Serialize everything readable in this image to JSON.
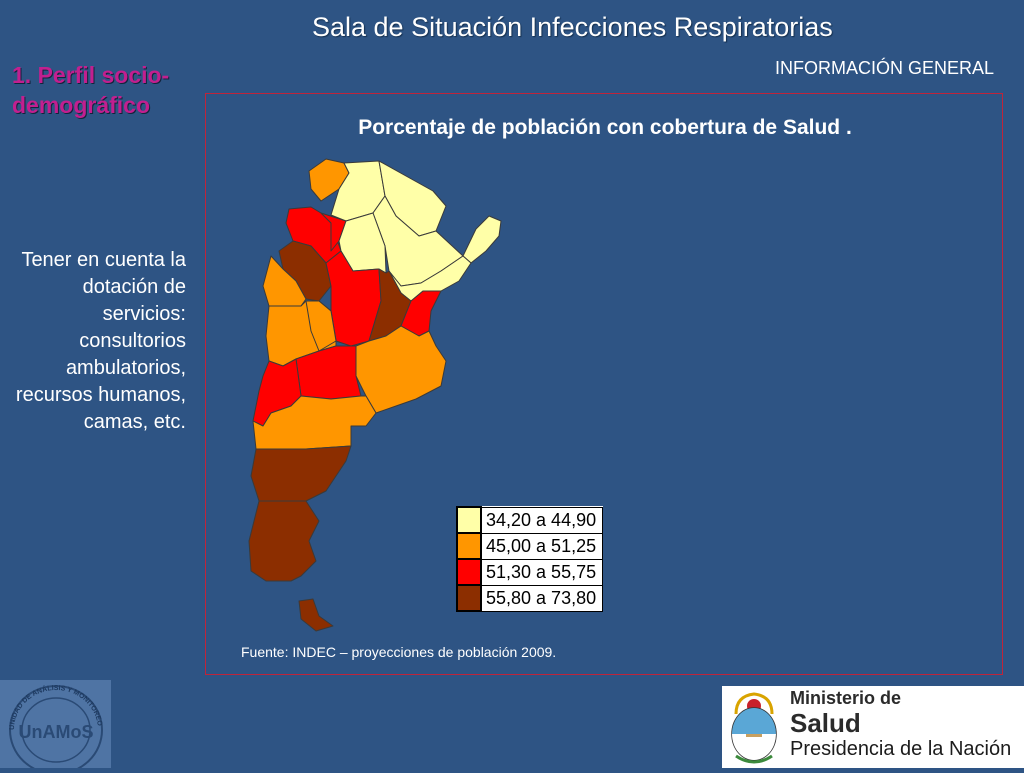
{
  "header": {
    "title": "Sala de Situación Infecciones Respiratorias",
    "section": "INFORMACIÓN GENERAL"
  },
  "sidebar": {
    "heading": "1. Perfil socio-demográfico",
    "note": "Tener en cuenta la dotación de servicios: consultorios ambulatorios, recursos humanos, camas, etc."
  },
  "map": {
    "title": "Porcentaje de población con cobertura de Salud .",
    "legend": [
      {
        "label": "34,20 a 44,90",
        "color": "#ffffa8"
      },
      {
        "label": "45,00 a 51,25",
        "color": "#ff9600"
      },
      {
        "label": "51,30 a 55,75",
        "color": "#ff0000"
      },
      {
        "label": "55,80 a 73,80",
        "color": "#8c2e00"
      }
    ],
    "regions": [
      {
        "id": "jujuy",
        "class": 1
      },
      {
        "id": "salta",
        "class": 0
      },
      {
        "id": "formosa",
        "class": 0
      },
      {
        "id": "misiones",
        "class": 0
      },
      {
        "id": "chaco",
        "class": 0
      },
      {
        "id": "catamarca",
        "class": 2
      },
      {
        "id": "tucuman",
        "class": 2
      },
      {
        "id": "santiago-del-estero",
        "class": 0
      },
      {
        "id": "corrientes",
        "class": 0
      },
      {
        "id": "la-rioja",
        "class": 3
      },
      {
        "id": "san-juan",
        "class": 1
      },
      {
        "id": "cordoba",
        "class": 2
      },
      {
        "id": "santa-fe",
        "class": 3
      },
      {
        "id": "entre-rios",
        "class": 2
      },
      {
        "id": "mendoza",
        "class": 1
      },
      {
        "id": "san-luis",
        "class": 1
      },
      {
        "id": "buenos-aires",
        "class": 1
      },
      {
        "id": "la-pampa",
        "class": 2
      },
      {
        "id": "neuquen",
        "class": 2
      },
      {
        "id": "rio-negro",
        "class": 1
      },
      {
        "id": "chubut",
        "class": 3
      },
      {
        "id": "santa-cruz",
        "class": 3
      },
      {
        "id": "tierra-del-fuego",
        "class": 3
      }
    ],
    "source": "Fuente: INDEC – proyecciones de población 2009."
  },
  "logos": {
    "unamos_text": "UnAMoS",
    "unamos_ring": "UNIDAD DE ANÁLISIS Y MONITOREO DE LA SALUD",
    "ministry_line1": "Ministerio de",
    "ministry_line2": "Salud",
    "ministry_line3": "Presidencia de la Nación"
  }
}
